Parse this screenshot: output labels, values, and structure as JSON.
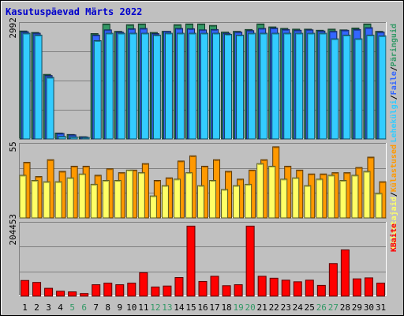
{
  "title": "Kasutuspäevad Märts 2022",
  "colors": {
    "frame": "#c0c0c0",
    "plot_bg": "#c0c0c0",
    "title": "#0000cc",
    "pages": "#33ccff",
    "files": "#3366ff",
    "hits": "#339966",
    "visits": "#ff9900",
    "sites": "#ffff66",
    "kbytes": "#ff0000",
    "weekend": "#339966",
    "weekday": "#000000"
  },
  "chart_data": [
    {
      "type": "bar",
      "name": "hits-files-pages",
      "title": "Kasutuspäevad Märts 2022",
      "y_tick_label": "2992",
      "ylim": [
        0,
        3150
      ],
      "legend_labels": [
        "Lehekülgi",
        "Faile",
        "Päringuid"
      ],
      "legend_separator": "/",
      "categories": [
        "1",
        "2",
        "3",
        "4",
        "5",
        "6",
        "7",
        "8",
        "9",
        "10",
        "11",
        "12",
        "13",
        "14",
        "15",
        "16",
        "17",
        "18",
        "19",
        "20",
        "21",
        "22",
        "23",
        "24",
        "25",
        "26",
        "27",
        "28",
        "29",
        "30",
        "31"
      ],
      "series": [
        {
          "name": "Päringuid",
          "key": "hits",
          "values": [
            2910,
            2870,
            1740,
            160,
            120,
            60,
            2840,
            3100,
            2900,
            3080,
            3100,
            2870,
            2900,
            3080,
            3100,
            3100,
            3060,
            2880,
            2900,
            2950,
            3100,
            3020,
            2980,
            2960,
            2960,
            2930,
            2960,
            2940,
            2990,
            3100,
            2900
          ]
        },
        {
          "name": "Faile",
          "key": "files",
          "values": [
            2890,
            2850,
            1710,
            150,
            110,
            55,
            2800,
            2940,
            2880,
            2970,
            2980,
            2840,
            2900,
            2980,
            2970,
            2940,
            2950,
            2850,
            2880,
            2920,
            2980,
            2990,
            2950,
            2930,
            2940,
            2910,
            2900,
            2930,
            2950,
            3000,
            2880
          ]
        },
        {
          "name": "Lehekülgi",
          "key": "pages",
          "values": [
            2850,
            2800,
            1660,
            70,
            55,
            40,
            2650,
            2850,
            2850,
            2850,
            2850,
            2800,
            2850,
            2850,
            2850,
            2850,
            2850,
            2820,
            2800,
            2850,
            2850,
            2850,
            2850,
            2850,
            2850,
            2850,
            2700,
            2800,
            2700,
            2800,
            2780
          ]
        }
      ]
    },
    {
      "type": "bar",
      "name": "visits-sites",
      "y_tick_label": "55",
      "ylim": [
        0,
        58
      ],
      "legend_labels": [
        "Külastajaid",
        "Külastused"
      ],
      "legend_separator": "/",
      "categories": [
        "1",
        "2",
        "3",
        "4",
        "5",
        "6",
        "7",
        "8",
        "9",
        "10",
        "11",
        "12",
        "13",
        "14",
        "15",
        "16",
        "17",
        "18",
        "19",
        "20",
        "21",
        "22",
        "23",
        "24",
        "25",
        "26",
        "27",
        "28",
        "29",
        "30",
        "31"
      ],
      "series": [
        {
          "name": "Külastused",
          "key": "visits",
          "values": [
            43,
            32,
            45,
            36,
            40,
            40,
            33,
            38,
            35,
            37,
            42,
            29,
            31,
            44,
            48,
            40,
            45,
            36,
            30,
            37,
            45,
            55,
            40,
            37,
            34,
            34,
            35,
            35,
            39,
            47,
            28
          ]
        },
        {
          "name": "Külastajaid",
          "key": "sites",
          "values": [
            33,
            29,
            28,
            28,
            31,
            34,
            26,
            29,
            29,
            37,
            35,
            17,
            25,
            30,
            35,
            25,
            29,
            22,
            25,
            26,
            42,
            40,
            30,
            31,
            25,
            30,
            33,
            29,
            33,
            36,
            19
          ]
        }
      ]
    },
    {
      "type": "bar",
      "name": "kbytes",
      "y_tick_label": "204453",
      "ylim": [
        0,
        228000
      ],
      "legend_labels": [
        "KBaite"
      ],
      "categories": [
        "1",
        "2",
        "3",
        "4",
        "5",
        "6",
        "7",
        "8",
        "9",
        "10",
        "11",
        "12",
        "13",
        "14",
        "15",
        "16",
        "17",
        "18",
        "19",
        "20",
        "21",
        "22",
        "23",
        "24",
        "25",
        "26",
        "27",
        "28",
        "29",
        "30",
        "31"
      ],
      "series": [
        {
          "name": "KBaite",
          "key": "kbytes",
          "values": [
            48000,
            42000,
            24000,
            15000,
            13000,
            8000,
            35000,
            40000,
            35000,
            40000,
            72000,
            28000,
            31000,
            57000,
            215000,
            45000,
            61000,
            32000,
            35000,
            215000,
            61000,
            55000,
            49000,
            44000,
            49000,
            33000,
            100000,
            142000,
            53000,
            56000,
            40000
          ]
        }
      ]
    }
  ],
  "x_axis": {
    "labels": [
      "1",
      "2",
      "3",
      "4",
      "5",
      "6",
      "7",
      "8",
      "9",
      "10",
      "11",
      "12",
      "13",
      "14",
      "15",
      "16",
      "17",
      "18",
      "19",
      "20",
      "21",
      "22",
      "23",
      "24",
      "25",
      "26",
      "27",
      "28",
      "29",
      "30",
      "31"
    ],
    "weekend_days": [
      "5",
      "6",
      "12",
      "13",
      "19",
      "20",
      "26",
      "27"
    ]
  }
}
